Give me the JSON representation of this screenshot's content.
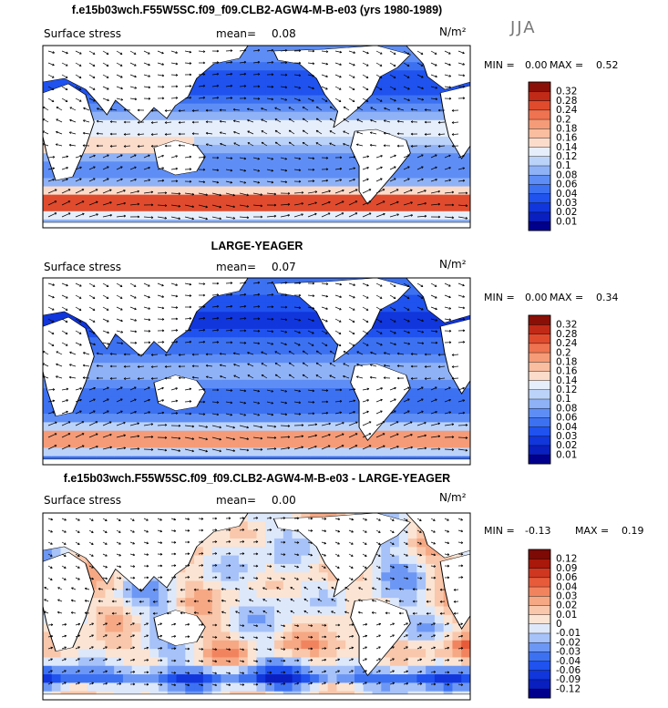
{
  "season": "JJA",
  "chart_data": [
    {
      "type": "heatmap",
      "title": "f.e15b03wch.F55W5SC.f09_f09.CLB2-AGW4-M-B-e03 (yrs 1980-1989)",
      "field_label": "Surface stress",
      "mean_label": "mean=",
      "mean_value": "0.08",
      "units": "N/m²",
      "min_label": "MIN =",
      "min_value": "0.00",
      "max_label": "MAX =",
      "max_value": "0.52",
      "scale": "sequential",
      "levels": [
        "0.01",
        "0.02",
        "0.03",
        "0.04",
        "0.06",
        "0.08",
        "0.1",
        "0.12",
        "0.14",
        "0.16",
        "0.18",
        "0.2",
        "0.24",
        "0.28",
        "0.32"
      ],
      "colors": [
        "#00008c",
        "#0a1fbf",
        "#1036dc",
        "#1f52ee",
        "#3c71f2",
        "#5e8ef5",
        "#8fb2f7",
        "#bcd3f9",
        "#e6eefb",
        "#fbdccb",
        "#f9bd9f",
        "#f59b77",
        "#ef7350",
        "#e04b2e",
        "#c02a17",
        "#8a0f06"
      ]
    },
    {
      "type": "heatmap",
      "title": "LARGE-YEAGER",
      "field_label": "Surface stress",
      "mean_label": "mean=",
      "mean_value": "0.07",
      "units": "N/m²",
      "min_label": "MIN =",
      "min_value": "0.00",
      "max_label": "MAX =",
      "max_value": "0.34",
      "scale": "sequential",
      "levels": [
        "0.01",
        "0.02",
        "0.03",
        "0.04",
        "0.06",
        "0.08",
        "0.1",
        "0.12",
        "0.14",
        "0.16",
        "0.18",
        "0.2",
        "0.24",
        "0.28",
        "0.32"
      ],
      "colors": [
        "#00008c",
        "#0a1fbf",
        "#1036dc",
        "#1f52ee",
        "#3c71f2",
        "#5e8ef5",
        "#8fb2f7",
        "#bcd3f9",
        "#e6eefb",
        "#fbdccb",
        "#f9bd9f",
        "#f59b77",
        "#ef7350",
        "#e04b2e",
        "#c02a17",
        "#8a0f06"
      ]
    },
    {
      "type": "heatmap",
      "title": "f.e15b03wch.F55W5SC.f09_f09.CLB2-AGW4-M-B-e03 - LARGE-YEAGER",
      "field_label": "Surface stress",
      "mean_label": "mean=",
      "mean_value": "0.00",
      "units": "N/m²",
      "min_label": "MIN =",
      "min_value": "-0.13",
      "max_label": "MAX =",
      "max_value": "0.19",
      "scale": "diverging",
      "levels": [
        "-0.12",
        "-0.09",
        "-0.06",
        "-0.04",
        "-0.03",
        "-0.02",
        "-0.01",
        "0",
        "0.01",
        "0.02",
        "0.03",
        "0.04",
        "0.06",
        "0.09",
        "0.12"
      ],
      "colors": [
        "#00008c",
        "#0a1fbf",
        "#1036dc",
        "#1f52ee",
        "#3c71f2",
        "#6d97f4",
        "#a6c2f8",
        "#dde8fb",
        "#fbe4d3",
        "#f9c7ab",
        "#f6a884",
        "#f1845f",
        "#e85b3a",
        "#cf3720",
        "#a8180b",
        "#7d0a04"
      ]
    }
  ]
}
